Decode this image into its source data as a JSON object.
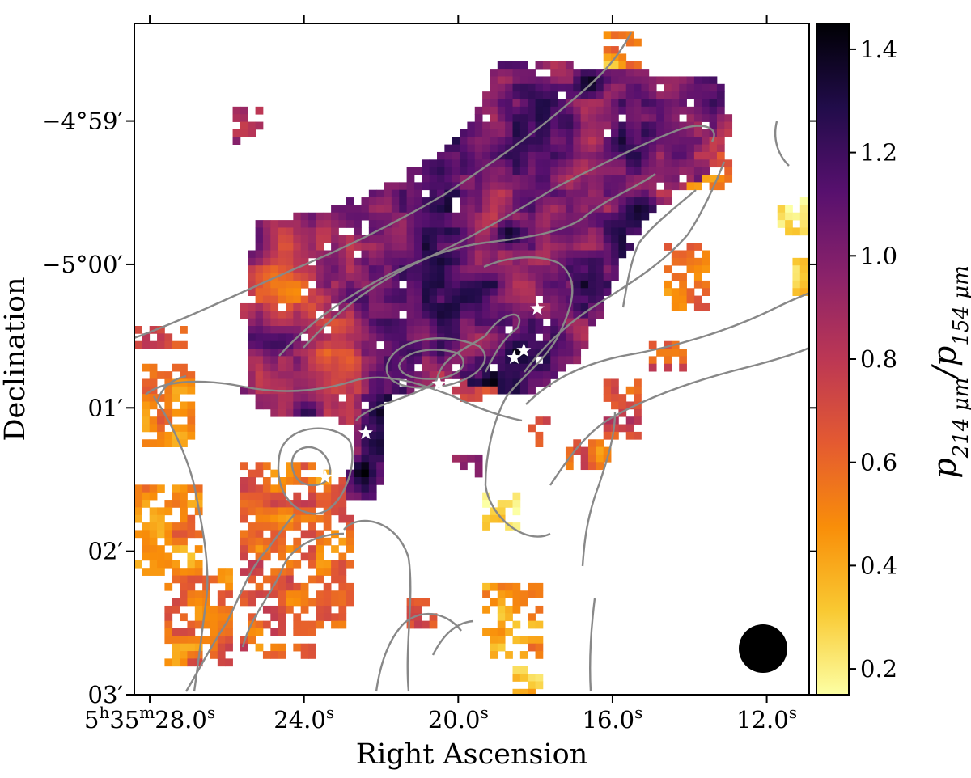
{
  "chart_data": {
    "type": "heatmap",
    "title": "",
    "xlabel": "Right Ascension",
    "ylabel": "Declination",
    "x_ticks": [
      {
        "label": "5h35m28.0s",
        "value": 28.0,
        "parts": [
          {
            "t": "5",
            "s": false
          },
          {
            "t": "h",
            "s": true
          },
          {
            "t": "35",
            "s": false
          },
          {
            "t": "m",
            "s": true
          },
          {
            "t": "28.0",
            "s": false
          },
          {
            "t": "s",
            "s": true
          }
        ]
      },
      {
        "label": "24.0s",
        "value": 24.0,
        "parts": [
          {
            "t": "24.0",
            "s": false
          },
          {
            "t": "s",
            "s": true
          }
        ]
      },
      {
        "label": "20.0s",
        "value": 20.0,
        "parts": [
          {
            "t": "20.0",
            "s": false
          },
          {
            "t": "s",
            "s": true
          }
        ]
      },
      {
        "label": "16.0s",
        "value": 16.0,
        "parts": [
          {
            "t": "16.0",
            "s": false
          },
          {
            "t": "s",
            "s": true
          }
        ]
      },
      {
        "label": "12.0s",
        "value": 12.0,
        "parts": [
          {
            "t": "12.0",
            "s": false
          },
          {
            "t": "s",
            "s": true
          }
        ]
      }
    ],
    "xlim_seconds": [
      28.4,
      10.9
    ],
    "y_ticks": [
      {
        "label": "−4°59′",
        "value": -4.983333
      },
      {
        "label": "−5°00′",
        "value": -5.0
      },
      {
        "label": "01′",
        "value": -5.016667
      },
      {
        "label": "02′",
        "value": -5.033333
      },
      {
        "label": "03′",
        "value": -5.05
      }
    ],
    "ylim_deg": [
      -5.05,
      -4.972
    ],
    "colorbar": {
      "label": "p214 μm/p154 μm",
      "label_parts": [
        {
          "t": "p",
          "s": false
        },
        {
          "t": "214 μm",
          "s": true
        },
        {
          "t": "/p",
          "s": false
        },
        {
          "t": "154 μm",
          "s": true
        }
      ],
      "range": [
        0.15,
        1.45
      ],
      "ticks": [
        {
          "label": "0.2",
          "value": 0.2
        },
        {
          "label": "0.4",
          "value": 0.4
        },
        {
          "label": "0.6",
          "value": 0.6
        },
        {
          "label": "0.8",
          "value": 0.8
        },
        {
          "label": "1.0",
          "value": 1.0
        },
        {
          "label": "1.2",
          "value": 1.2
        },
        {
          "label": "1.4",
          "value": 1.4
        }
      ],
      "colormap": "inferno_r",
      "stops": [
        "#fcffa4",
        "#f9c932",
        "#f98e09",
        "#e45a31",
        "#bc3754",
        "#8a226a",
        "#57106e",
        "#210c4a",
        "#000004"
      ]
    },
    "stars": [
      {
        "ra_s": 20.5,
        "dec_deg": -5.01389
      },
      {
        "ra_s": 22.4,
        "dec_deg": -5.01958
      },
      {
        "ra_s": 23.45,
        "dec_deg": -5.02472
      },
      {
        "ra_s": 18.55,
        "dec_deg": -5.01083
      },
      {
        "ra_s": 18.3,
        "dec_deg": -5.01
      },
      {
        "ra_s": 17.95,
        "dec_deg": -5.00514
      }
    ],
    "beam": {
      "shape": "circle",
      "location": "bottom-right"
    },
    "contours": {
      "color": "#888888",
      "count": 7
    },
    "background": "#ffffff",
    "star_color": "#ffffff"
  }
}
